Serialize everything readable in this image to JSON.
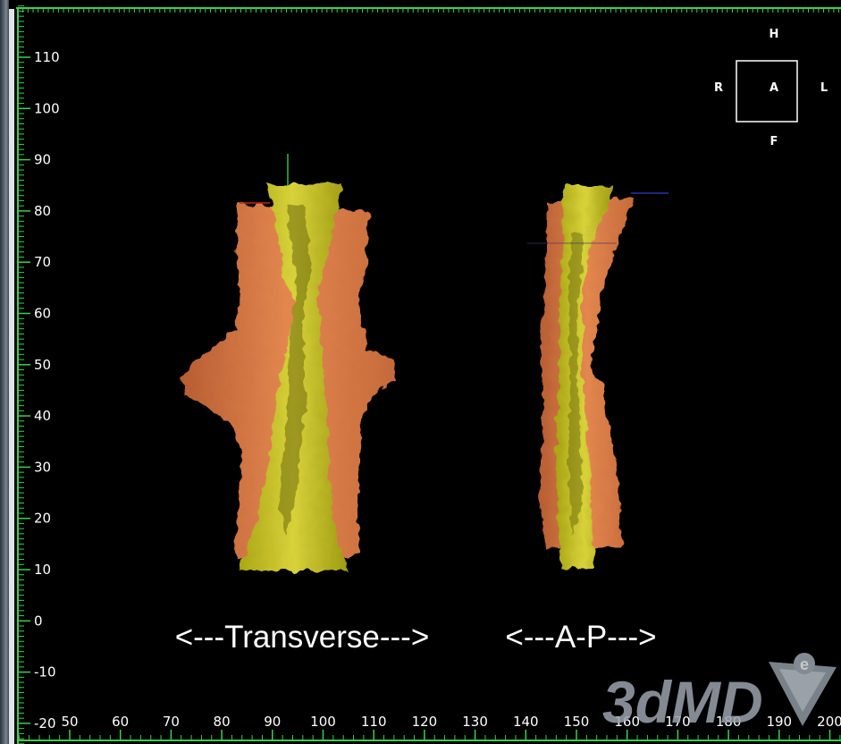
{
  "viewer": {
    "y_axis_ticks": [
      "110",
      "100",
      "90",
      "80",
      "70",
      "60",
      "50",
      "40",
      "30",
      "20",
      "10",
      "0",
      "-10",
      "-20"
    ],
    "x_axis_ticks": [
      "50",
      "60",
      "70",
      "80",
      "90",
      "100",
      "110",
      "120",
      "130",
      "140",
      "150",
      "160",
      "170",
      "180",
      "190",
      "200"
    ],
    "views": {
      "transverse_label": "<---Transverse--->",
      "ap_label": "<---A-P--->"
    },
    "orientation_cube": {
      "top": "H",
      "center": "A",
      "left": "R",
      "right": "L",
      "bottom": "F"
    },
    "logo": "3dMD"
  },
  "colors": {
    "background": "#000000",
    "axis": "#39d050",
    "outer_tissue": "#d97b47",
    "inner_airway": "#c9c21e"
  },
  "icons": {
    "logo_emblem": "3dmd-logo-emblem-icon"
  }
}
